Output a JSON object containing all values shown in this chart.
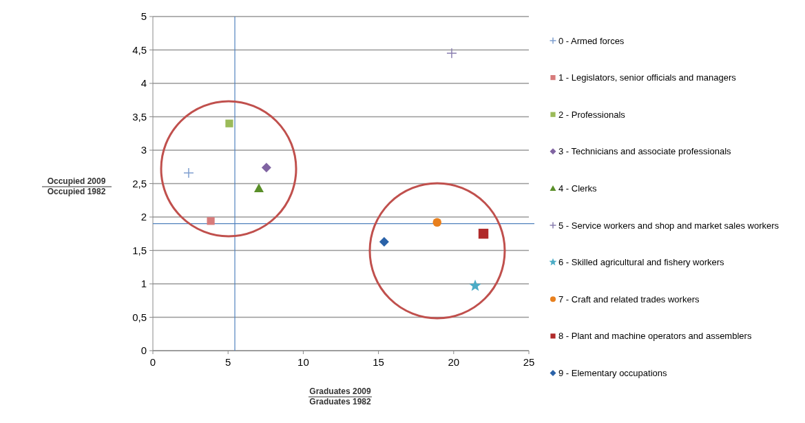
{
  "chart_data": {
    "type": "scatter",
    "xlabel": "Graduates 2009\nGraduates 1982",
    "ylabel": "Occupied 2009\nOccupied 1982",
    "xlim": [
      0,
      25
    ],
    "xticks": [
      0,
      5,
      10,
      15,
      20,
      25
    ],
    "ylim": [
      0,
      5
    ],
    "yticks": [
      0,
      {
        "value": 0.5,
        "label": "0,5"
      },
      1,
      {
        "value": 1.5,
        "label": "1,5"
      },
      2,
      {
        "value": 2.5,
        "label": "2,5"
      },
      3,
      {
        "value": 3.5,
        "label": "3,5"
      },
      4,
      {
        "value": 4.5,
        "label": "4,5"
      },
      5
    ],
    "grid": "y",
    "legend": "right",
    "ref_lines": [
      {
        "axis": "x",
        "value": 5.45,
        "color": "#4f81bd"
      },
      {
        "axis": "y",
        "value": 1.9,
        "color": "#4f81bd"
      }
    ],
    "series": [
      {
        "name": "0 - Armed forces",
        "color": "#7f9fd0",
        "marker": "cross",
        "x": [
          2.38
        ],
        "values": [
          2.66
        ]
      },
      {
        "name": "1 - Legislators, senior officials and managers",
        "color": "#d77b7b",
        "marker": "square",
        "x": [
          3.85
        ],
        "values": [
          1.94
        ]
      },
      {
        "name": "2 - Professionals",
        "color": "#9bbb59",
        "marker": "square",
        "x": [
          5.08
        ],
        "values": [
          3.4
        ]
      },
      {
        "name": "3 - Technicians and associate professionals",
        "color": "#8064a2",
        "marker": "diamond",
        "x": [
          7.55
        ],
        "values": [
          2.74
        ]
      },
      {
        "name": "4 - Clerks",
        "color": "#5a8f29",
        "marker": "triangle",
        "x": [
          7.05
        ],
        "values": [
          2.43
        ]
      },
      {
        "name": "5 - Service workers and shop and market sales workers",
        "color": "#8a7fb0",
        "marker": "cross",
        "x": [
          19.87
        ],
        "values": [
          4.45
        ]
      },
      {
        "name": "6 - Skilled agricultural and fishery workers",
        "color": "#4bacc6",
        "marker": "star",
        "x": [
          21.43
        ],
        "values": [
          0.97
        ]
      },
      {
        "name": "7 - Craft and related trades workers",
        "color": "#e8801e",
        "marker": "circle",
        "x": [
          18.9
        ],
        "values": [
          1.92
        ]
      },
      {
        "name": "8 - Plant and machine operators and assemblers",
        "color": "#b02a2a",
        "marker": "square",
        "x": [
          21.98
        ],
        "values": [
          1.75
        ]
      },
      {
        "name": "9 - Elementary occupations",
        "color": "#2a62a8",
        "marker": "diamond",
        "x": [
          15.38
        ],
        "values": [
          1.63
        ]
      }
    ]
  }
}
